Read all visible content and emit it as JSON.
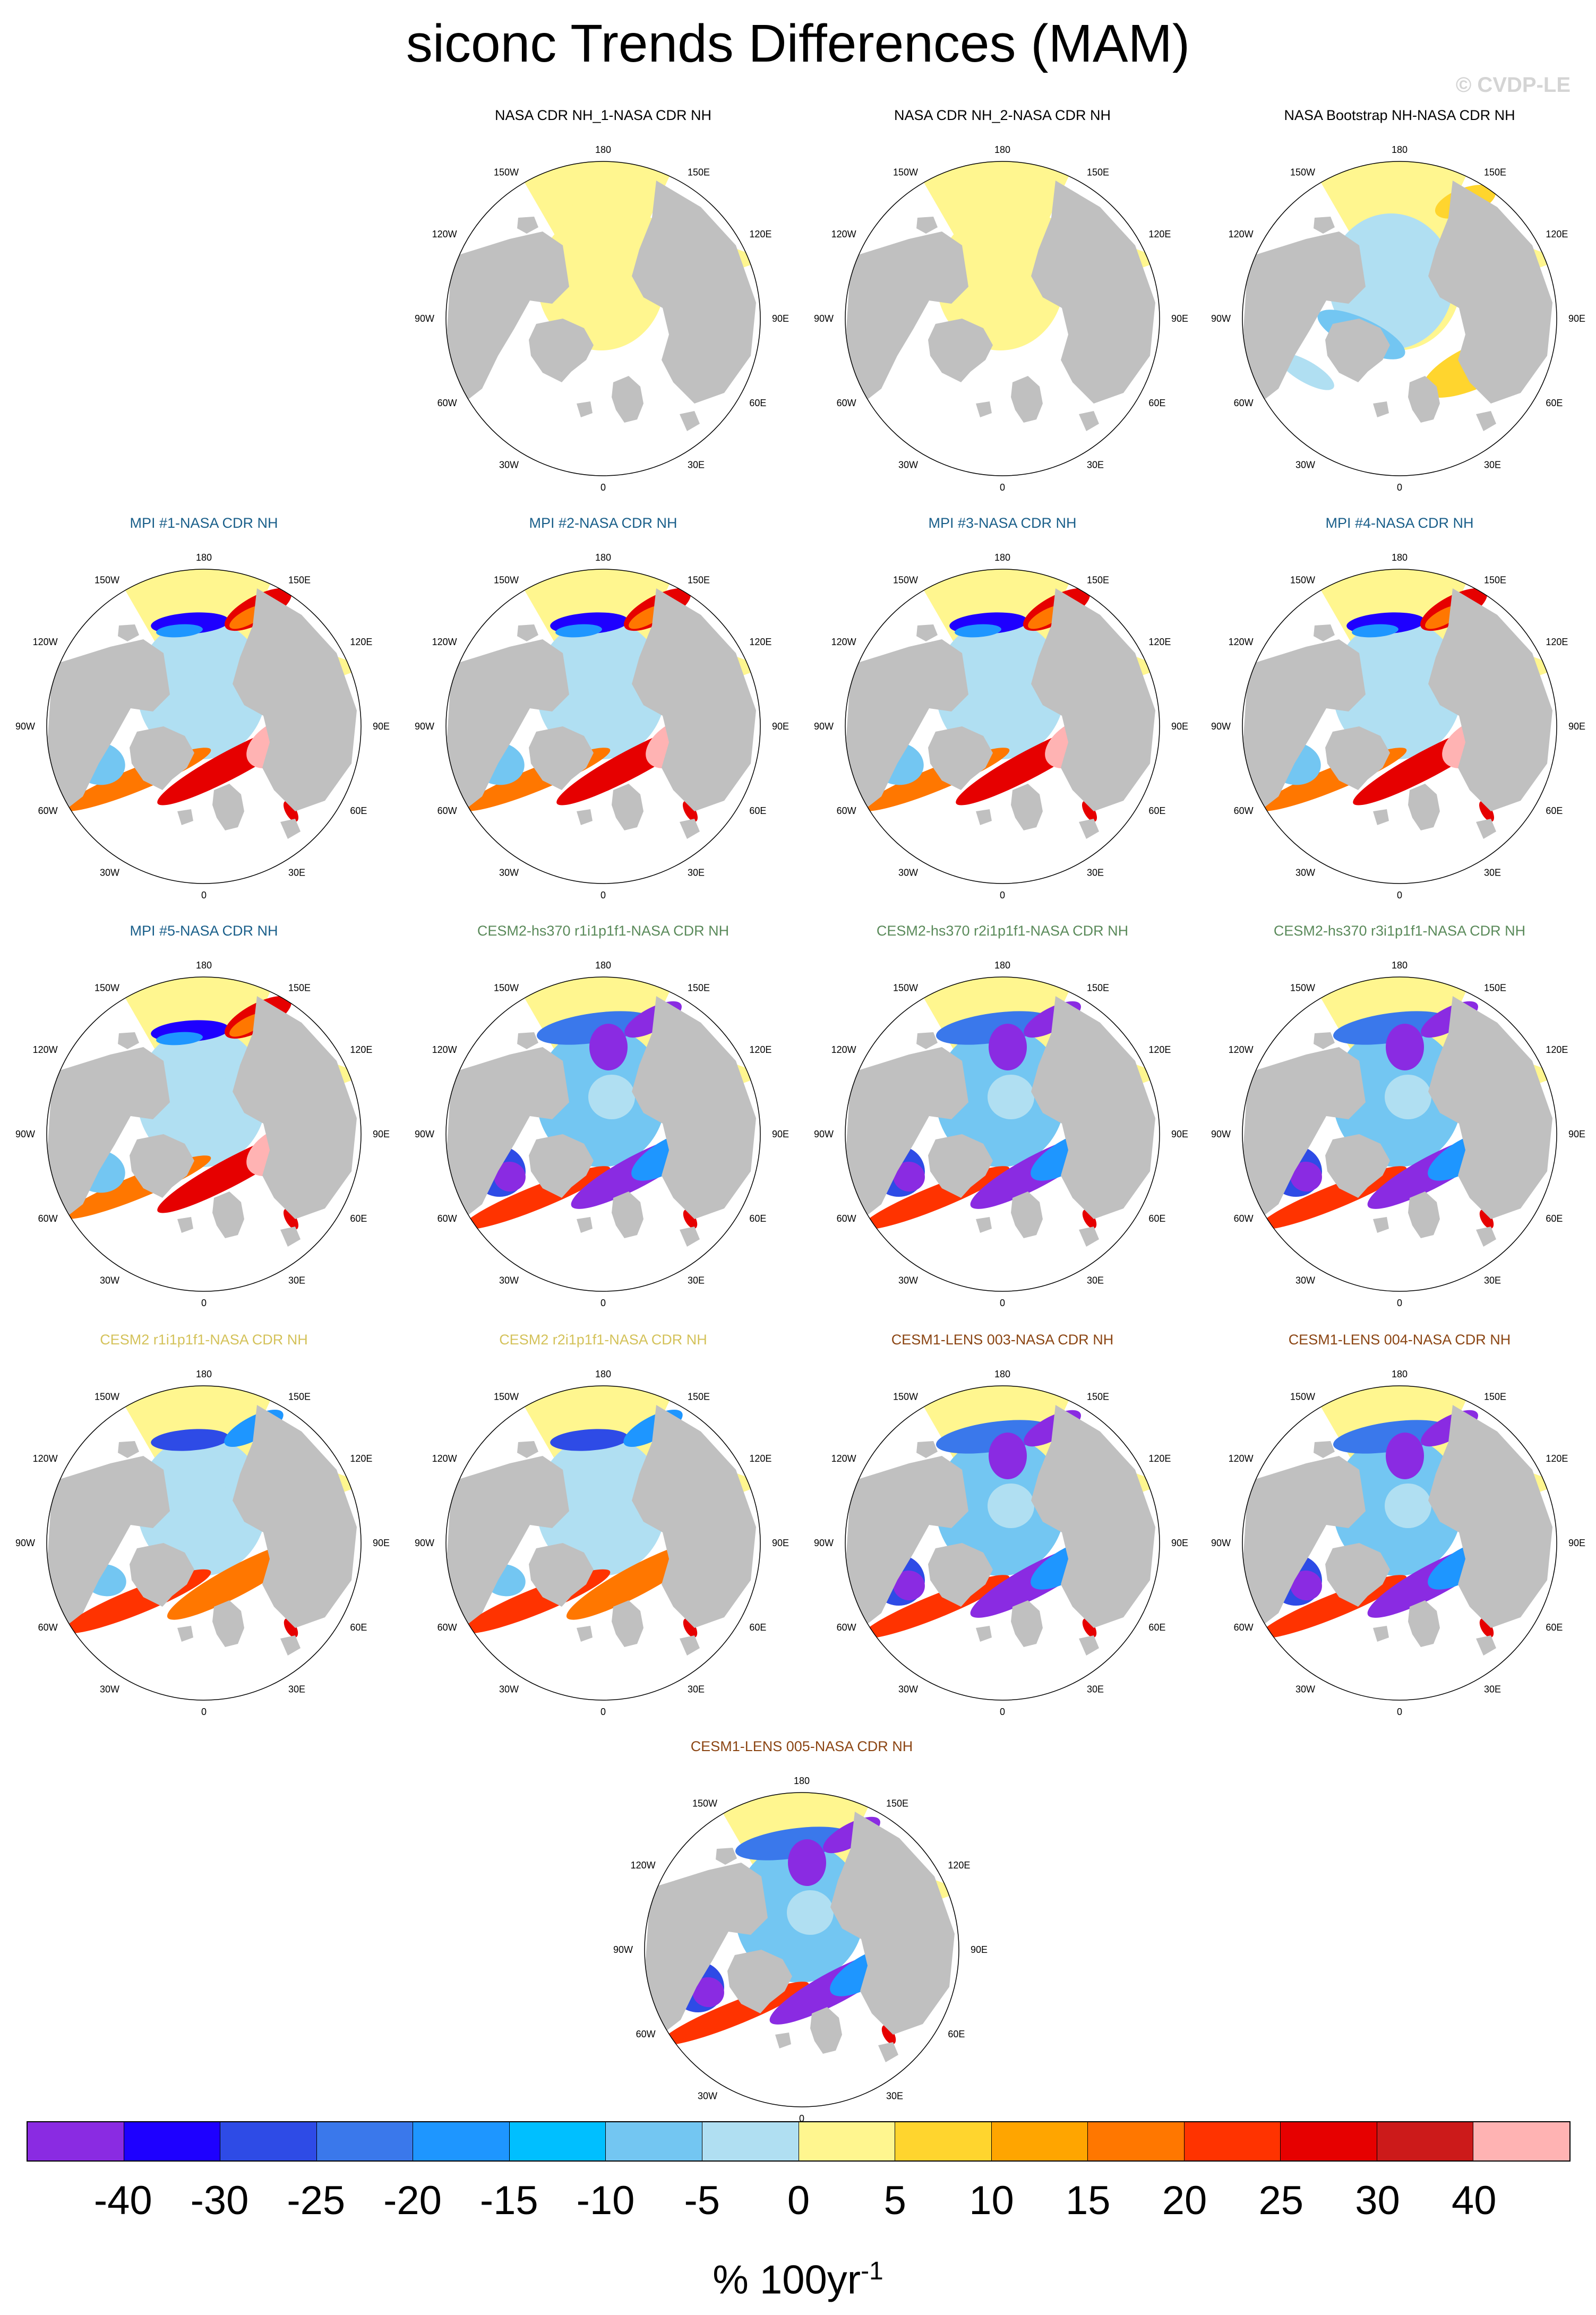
{
  "title": "siconc Trends Differences (MAM)",
  "watermark": "© CVDP-LE",
  "colors": {
    "ocean": "#ffffff",
    "land": "#c0c0c0",
    "group_obs": "#000000",
    "group_mpi": "#1a5f8a",
    "group_cesm2_hs370": "#5a8a5a",
    "group_cesm2": "#d4c25a",
    "group_cesm1_lens": "#8b4513"
  },
  "longitude_labels": [
    "180",
    "150E",
    "120E",
    "90E",
    "60E",
    "30E",
    "0",
    "30W",
    "60W",
    "90W",
    "120W",
    "150W"
  ],
  "panels": [
    {
      "title": "NASA CDR NH_1-NASA CDR NH",
      "group": "obs",
      "pattern": "uniform"
    },
    {
      "title": "NASA CDR NH_2-NASA CDR NH",
      "group": "obs",
      "pattern": "uniform"
    },
    {
      "title": "NASA Bootstrap NH-NASA CDR NH",
      "group": "obs",
      "pattern": "bootstrap"
    },
    {
      "title": "MPI #1-NASA CDR NH",
      "group": "mpi",
      "pattern": "mpi"
    },
    {
      "title": "MPI #2-NASA CDR NH",
      "group": "mpi",
      "pattern": "mpi"
    },
    {
      "title": "MPI #3-NASA CDR NH",
      "group": "mpi",
      "pattern": "mpi"
    },
    {
      "title": "MPI #4-NASA CDR NH",
      "group": "mpi",
      "pattern": "mpi"
    },
    {
      "title": "MPI #5-NASA CDR NH",
      "group": "mpi",
      "pattern": "mpi"
    },
    {
      "title": "CESM2-hs370 r1i1p1f1-NASA CDR NH",
      "group": "cesm2_hs370",
      "pattern": "cesm_neg"
    },
    {
      "title": "CESM2-hs370 r2i1p1f1-NASA CDR NH",
      "group": "cesm2_hs370",
      "pattern": "cesm_neg"
    },
    {
      "title": "CESM2-hs370 r3i1p1f1-NASA CDR NH",
      "group": "cesm2_hs370",
      "pattern": "cesm_neg"
    },
    {
      "title": "CESM2 r1i1p1f1-NASA CDR NH",
      "group": "cesm2",
      "pattern": "cesm2"
    },
    {
      "title": "CESM2 r2i1p1f1-NASA CDR NH",
      "group": "cesm2",
      "pattern": "cesm2"
    },
    {
      "title": "CESM1-LENS 003-NASA CDR NH",
      "group": "cesm1_lens",
      "pattern": "lens"
    },
    {
      "title": "CESM1-LENS 004-NASA CDR NH",
      "group": "cesm1_lens",
      "pattern": "lens"
    },
    {
      "title": "CESM1-LENS 005-NASA CDR NH",
      "group": "cesm1_lens",
      "pattern": "lens"
    }
  ],
  "colorbar": {
    "colors": [
      "#8a2be2",
      "#1e00ff",
      "#2e4be6",
      "#3a78eb",
      "#1e96ff",
      "#00bfff",
      "#73c6f2",
      "#b0dff2",
      "#fff68f",
      "#ffd52e",
      "#ffa500",
      "#ff7700",
      "#ff3300",
      "#e60000",
      "#cc1a1a",
      "#ffb3b3"
    ],
    "labels": [
      "-40",
      "-30",
      "-25",
      "-20",
      "-15",
      "-10",
      "-5",
      "0",
      "5",
      "10",
      "15",
      "20",
      "25",
      "30",
      "40"
    ],
    "units_base": "% 100yr",
    "units_exp": "-1"
  }
}
